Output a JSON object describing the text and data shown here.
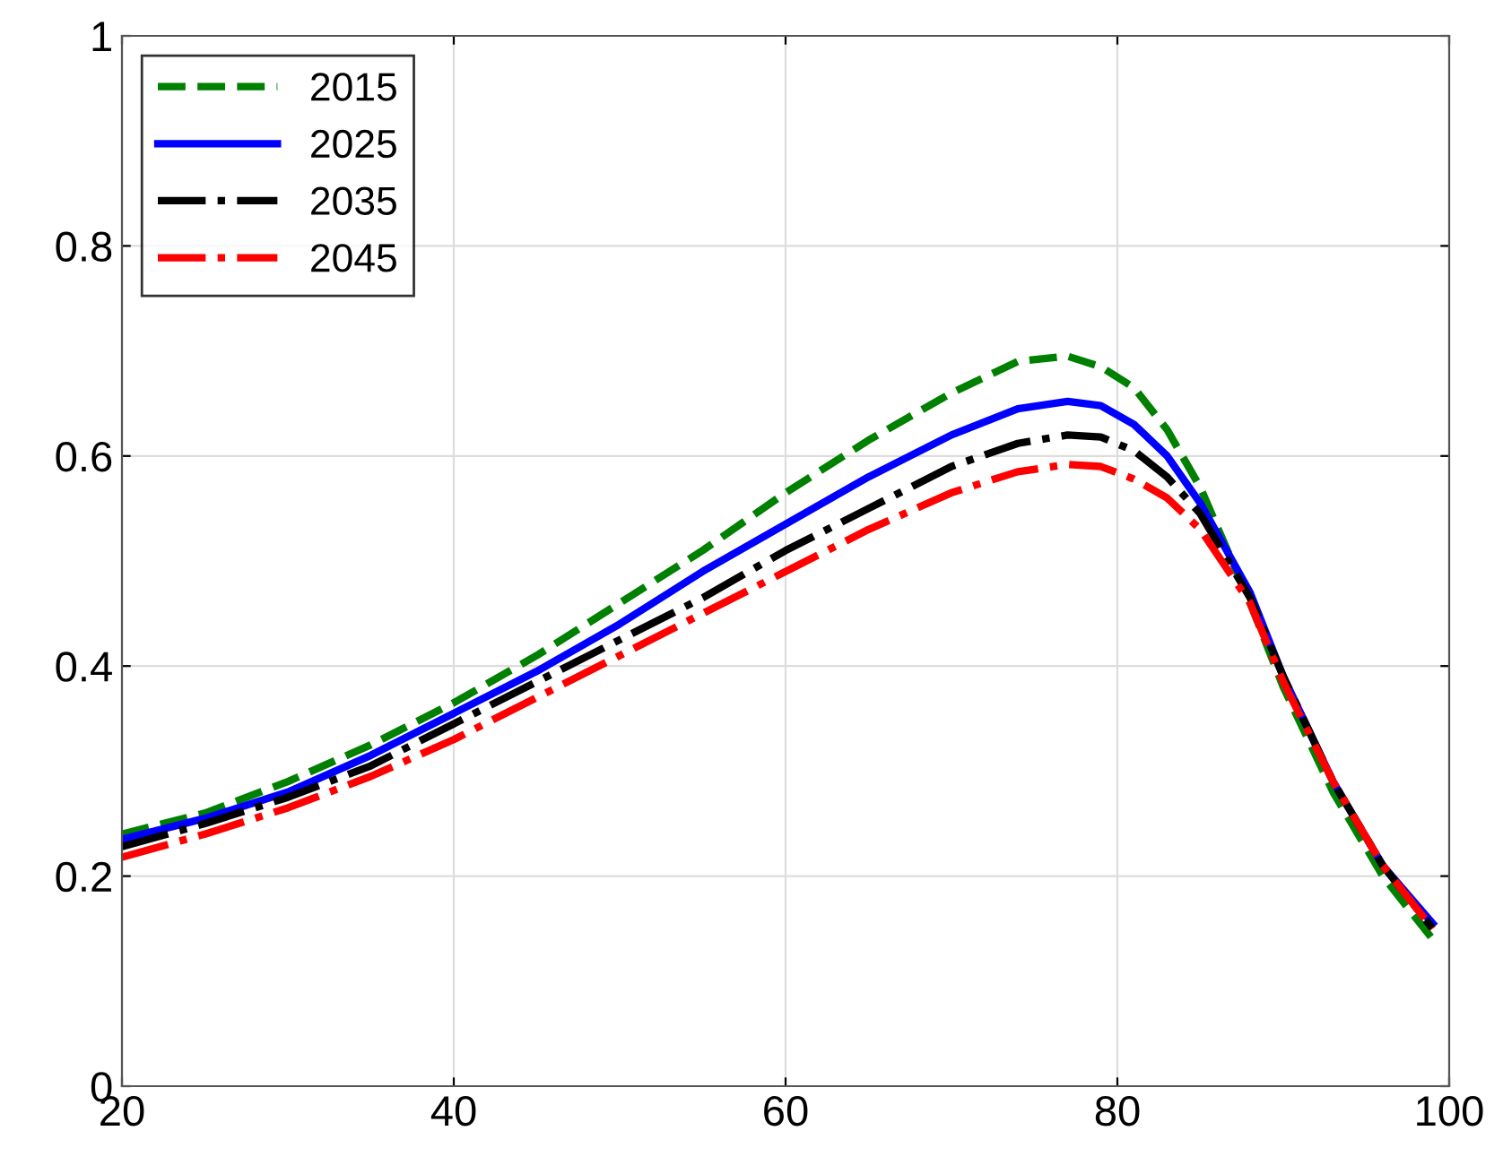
{
  "chart_data": {
    "type": "line",
    "x": [
      20,
      25,
      30,
      35,
      40,
      45,
      50,
      55,
      60,
      65,
      70,
      74,
      77,
      79,
      81,
      83,
      85,
      88,
      90,
      93,
      96,
      99
    ],
    "xlim": [
      20,
      100
    ],
    "xticks": [
      20,
      40,
      60,
      80,
      100
    ],
    "ylim": [
      0,
      1
    ],
    "yticks": [
      0,
      0.2,
      0.4,
      0.6,
      0.8,
      1
    ],
    "grid": true,
    "legend": "top left",
    "series": [
      {
        "name": "2015",
        "color": "#008000",
        "line_style": "dashed",
        "values": [
          0.24,
          0.26,
          0.29,
          0.325,
          0.365,
          0.41,
          0.46,
          0.51,
          0.565,
          0.615,
          0.66,
          0.69,
          0.695,
          0.685,
          0.665,
          0.625,
          0.57,
          0.46,
          0.38,
          0.28,
          0.2,
          0.14
        ]
      },
      {
        "name": "2025",
        "color": "#0000ff",
        "line_style": "solid",
        "values": [
          0.235,
          0.255,
          0.28,
          0.315,
          0.355,
          0.395,
          0.44,
          0.49,
          0.535,
          0.58,
          0.62,
          0.645,
          0.652,
          0.648,
          0.63,
          0.6,
          0.555,
          0.47,
          0.39,
          0.29,
          0.21,
          0.155
        ]
      },
      {
        "name": "2035",
        "color": "#000000",
        "line_style": "dashdot",
        "values": [
          0.228,
          0.25,
          0.275,
          0.305,
          0.345,
          0.385,
          0.425,
          0.465,
          0.51,
          0.55,
          0.59,
          0.612,
          0.62,
          0.618,
          0.605,
          0.58,
          0.545,
          0.465,
          0.39,
          0.29,
          0.21,
          0.15
        ]
      },
      {
        "name": "2045",
        "color": "#ff0000",
        "line_style": "dashdot",
        "values": [
          0.218,
          0.24,
          0.265,
          0.295,
          0.33,
          0.37,
          0.41,
          0.45,
          0.49,
          0.53,
          0.565,
          0.585,
          0.592,
          0.59,
          0.578,
          0.56,
          0.53,
          0.46,
          0.385,
          0.29,
          0.21,
          0.15
        ]
      }
    ]
  }
}
